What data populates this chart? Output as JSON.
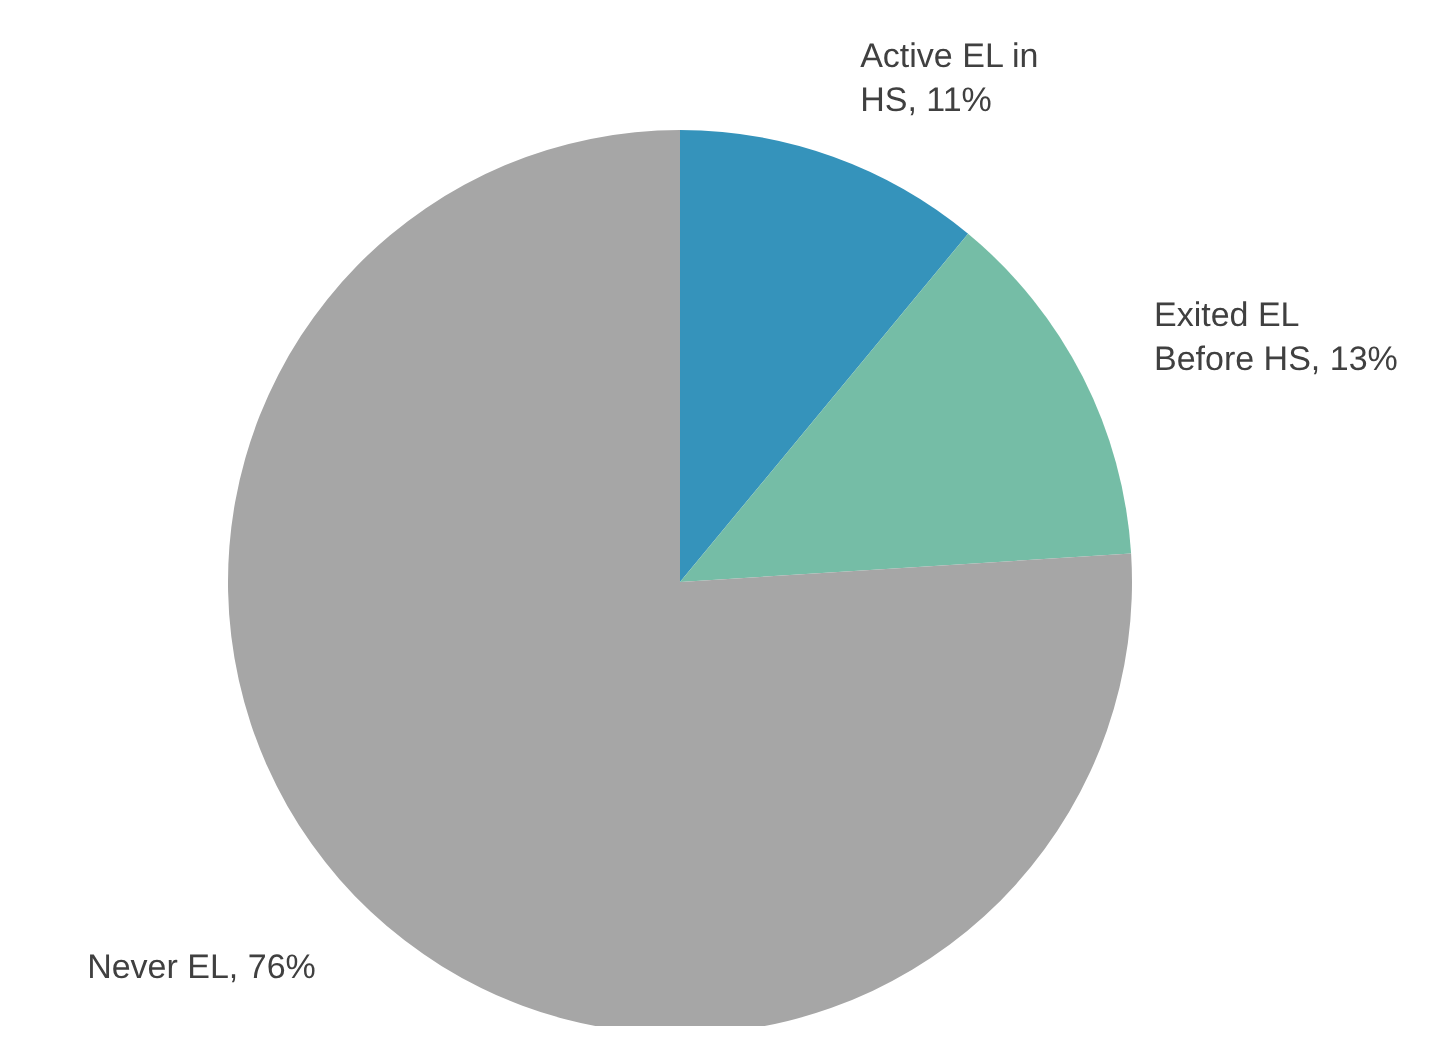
{
  "chart_data": {
    "type": "pie",
    "categories": [
      "Active EL in HS, 11%",
      "Exited EL Before HS, 13%",
      "Never EL, 76%"
    ],
    "values": [
      11,
      13,
      76
    ],
    "colors": [
      "#3593bb",
      "#75bda6",
      "#a6a6a6"
    ],
    "legend": false
  }
}
